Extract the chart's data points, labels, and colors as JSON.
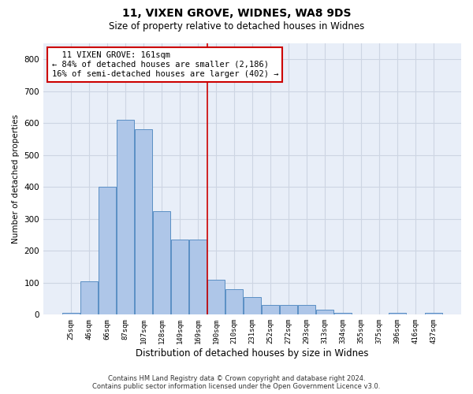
{
  "title1": "11, VIXEN GROVE, WIDNES, WA8 9DS",
  "title2": "Size of property relative to detached houses in Widnes",
  "xlabel": "Distribution of detached houses by size in Widnes",
  "ylabel": "Number of detached properties",
  "bar_labels": [
    "25sqm",
    "46sqm",
    "66sqm",
    "87sqm",
    "107sqm",
    "128sqm",
    "149sqm",
    "169sqm",
    "190sqm",
    "210sqm",
    "231sqm",
    "252sqm",
    "272sqm",
    "293sqm",
    "313sqm",
    "334sqm",
    "355sqm",
    "375sqm",
    "396sqm",
    "416sqm",
    "437sqm"
  ],
  "bar_values": [
    5,
    105,
    400,
    610,
    580,
    325,
    235,
    235,
    110,
    80,
    55,
    30,
    30,
    30,
    15,
    5,
    0,
    0,
    5,
    0,
    5
  ],
  "bar_color": "#aec6e8",
  "bar_edge_color": "#5a8fc4",
  "vline_pos": 7.5,
  "annotation_text": "  11 VIXEN GROVE: 161sqm\n← 84% of detached houses are smaller (2,186)\n16% of semi-detached houses are larger (402) →",
  "annotation_box_color": "#ffffff",
  "annotation_border_color": "#cc0000",
  "vline_color": "#cc0000",
  "ylim": [
    0,
    850
  ],
  "yticks": [
    0,
    100,
    200,
    300,
    400,
    500,
    600,
    700,
    800
  ],
  "grid_color": "#cdd5e3",
  "bg_color": "#e8eef8",
  "footer1": "Contains HM Land Registry data © Crown copyright and database right 2024.",
  "footer2": "Contains public sector information licensed under the Open Government Licence v3.0."
}
